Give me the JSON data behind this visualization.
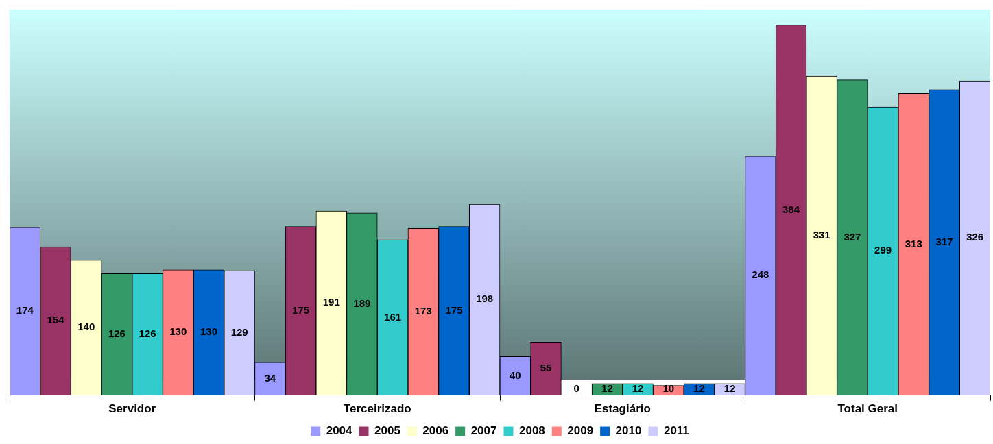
{
  "chart_data": {
    "type": "bar",
    "categories": [
      "Servidor",
      "Terceirizado",
      "Estagiário",
      "Total Geral"
    ],
    "series": [
      {
        "name": "2004",
        "color": "#9999ff",
        "values": [
          174,
          34,
          40,
          248
        ]
      },
      {
        "name": "2005",
        "color": "#993366",
        "values": [
          154,
          175,
          55,
          384
        ]
      },
      {
        "name": "2006",
        "color": "#ffffcc",
        "values": [
          140,
          191,
          0,
          331
        ]
      },
      {
        "name": "2007",
        "color": "#339966",
        "values": [
          126,
          189,
          12,
          327
        ]
      },
      {
        "name": "2008",
        "color": "#33cccc",
        "values": [
          126,
          161,
          12,
          299
        ]
      },
      {
        "name": "2009",
        "color": "#ff8080",
        "values": [
          130,
          173,
          10,
          313
        ]
      },
      {
        "name": "2010",
        "color": "#0066cc",
        "values": [
          130,
          175,
          12,
          317
        ]
      },
      {
        "name": "2011",
        "color": "#ccccff",
        "values": [
          129,
          198,
          12,
          326
        ]
      }
    ],
    "data_labels": true,
    "legend": "bottom",
    "grid": false
  }
}
